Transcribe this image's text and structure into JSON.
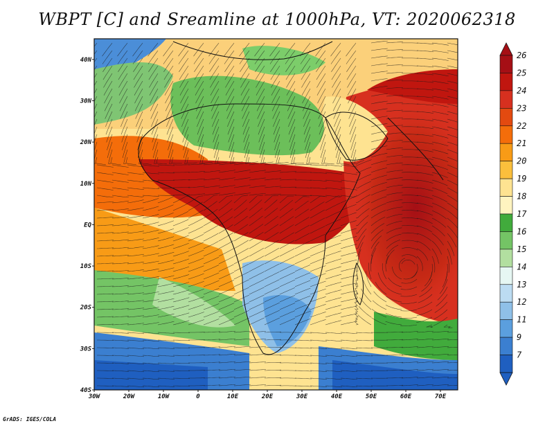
{
  "title": "WBPT [C] and Sreamline at 1000hPa, VT: 2020062318",
  "credit": "GrADS: IGES/COLA",
  "map": {
    "lat_labels": [
      "40N",
      "30N",
      "20N",
      "10N",
      "EQ",
      "10S",
      "20S",
      "30S",
      "40S"
    ],
    "lon_labels": [
      "30W",
      "20W",
      "10W",
      "0",
      "10E",
      "20E",
      "30E",
      "40E",
      "50E",
      "60E",
      "70E"
    ],
    "lat_range": [
      -40,
      45
    ],
    "lon_range": [
      -30,
      75
    ]
  },
  "colorbar": {
    "labels": [
      "26",
      "25",
      "24",
      "23",
      "22",
      "21",
      "20",
      "19",
      "18",
      "17",
      "16",
      "15",
      "14",
      "13",
      "12",
      "11",
      "9",
      "7"
    ],
    "colors": [
      "#a50f15",
      "#c0160f",
      "#d7301f",
      "#e34a10",
      "#f46d0a",
      "#f89b16",
      "#fbbf3c",
      "#fee391",
      "#fff4c0",
      "#41ab3c",
      "#74c465",
      "#b2dfa0",
      "#e6f7f3",
      "#bcdcf2",
      "#8fc0e8",
      "#5b9fde",
      "#3b7fd0",
      "#1f5fc0"
    ],
    "top_color": "#a50f15",
    "bottom_color": "#1f5fc0"
  }
}
